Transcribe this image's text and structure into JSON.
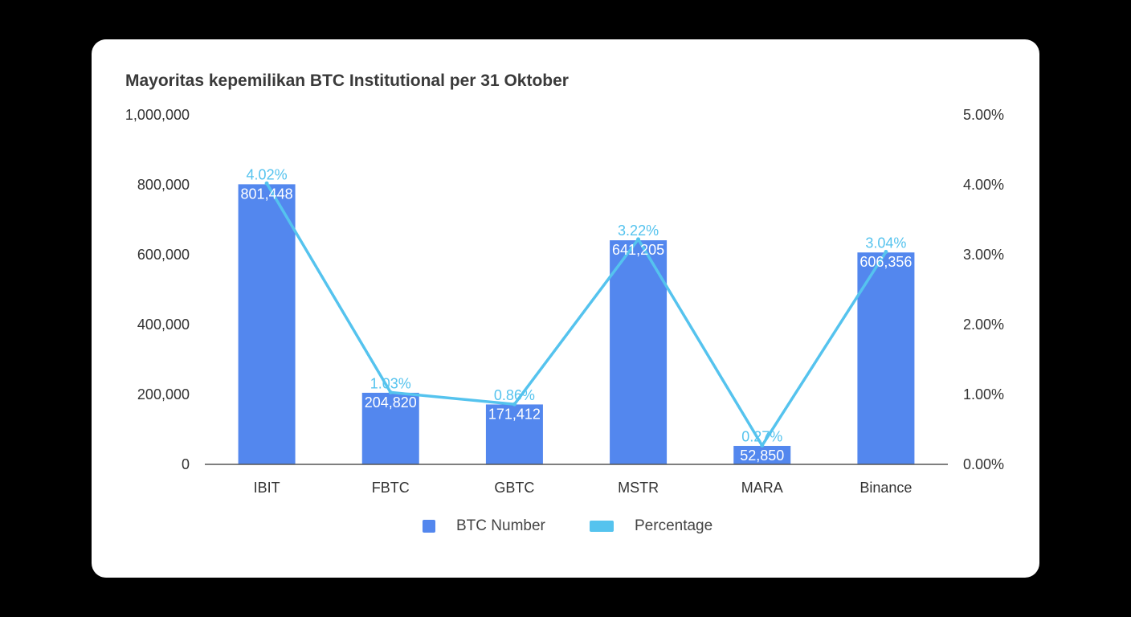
{
  "chart_data": {
    "type": "bar",
    "title": "Mayoritas kepemilikan BTC Institutional per 31 Oktober",
    "categories": [
      "IBIT",
      "FBTC",
      "GBTC",
      "MSTR",
      "MARA",
      "Binance"
    ],
    "series": [
      {
        "name": "BTC Number",
        "type": "bar",
        "axis": "left",
        "values": [
          801448,
          204820,
          171412,
          641205,
          52850,
          606356
        ],
        "labels": [
          "801,448",
          "204,820",
          "171,412",
          "641,205",
          "52,850",
          "606,356"
        ]
      },
      {
        "name": "Percentage",
        "type": "line",
        "axis": "right",
        "values": [
          4.02,
          1.03,
          0.86,
          3.22,
          0.27,
          3.04
        ],
        "labels": [
          "4.02%",
          "1.03%",
          "0.86%",
          "3.22%",
          "0.27%",
          "3.04%"
        ]
      }
    ],
    "y_left": {
      "ylim": [
        0,
        1000000
      ],
      "ticks": [
        "0",
        "200,000",
        "400,000",
        "600,000",
        "800,000",
        "1,000,000"
      ]
    },
    "y_right": {
      "ylim": [
        0,
        5
      ],
      "ticks": [
        "0.00%",
        "1.00%",
        "2.00%",
        "3.00%",
        "4.00%",
        "5.00%"
      ]
    },
    "grid": false,
    "legend_position": "bottom-center",
    "colors": {
      "bar": "#5387ee",
      "line": "#55c3ee",
      "bar_label_outside": "#5f8ff0"
    }
  }
}
